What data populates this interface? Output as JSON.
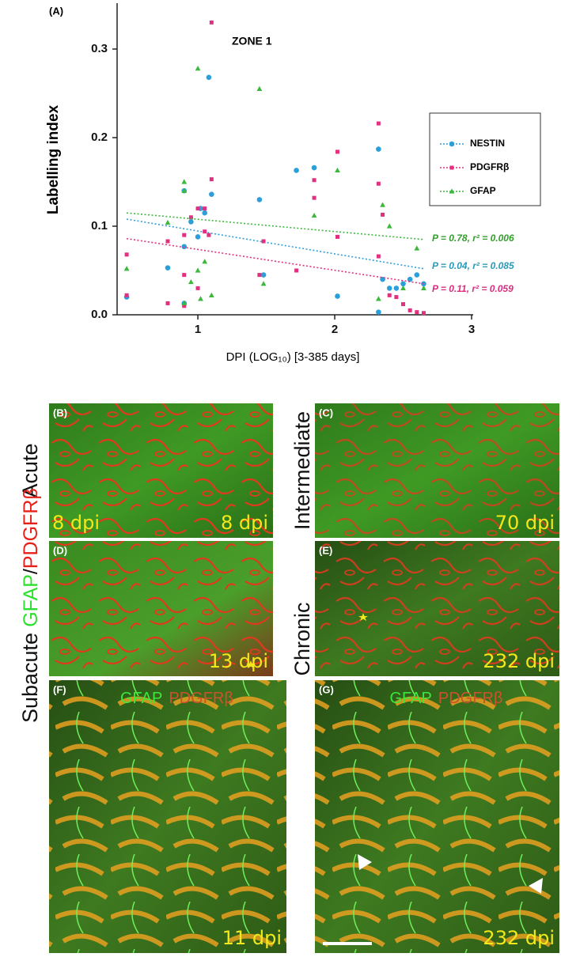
{
  "chart_data": {
    "type": "scatter",
    "panel_label": "(A)",
    "title": "ZONE 1",
    "xlabel": "DPI (LOG₁₀) [3-385 days]",
    "ylabel": "Labelling index",
    "xlim": [
      0.41,
      3
    ],
    "xticks": [
      1,
      2,
      3
    ],
    "ylim": [
      0,
      0.35
    ],
    "yticks": [
      {
        "value": 0,
        "label": "0.0"
      },
      0.1,
      0.2,
      0.3
    ],
    "legend": "right",
    "series": [
      {
        "name": "NESTIN",
        "color": "#2b9fd9",
        "marker": "circle",
        "x": [
          0.48,
          0.78,
          0.9,
          0.9,
          0.9,
          0.95,
          1.0,
          1.02,
          1.05,
          1.08,
          1.1,
          1.45,
          1.48,
          1.72,
          1.85,
          2.02,
          2.32,
          2.32,
          2.35,
          2.4,
          2.45,
          2.5,
          2.55,
          2.6,
          2.65
        ],
        "values": [
          0.02,
          0.053,
          0.14,
          0.077,
          0.013,
          0.105,
          0.088,
          0.12,
          0.115,
          0.268,
          0.136,
          0.13,
          0.045,
          0.163,
          0.166,
          0.021,
          0.187,
          0.003,
          0.04,
          0.03,
          0.03,
          0.035,
          0.04,
          0.045,
          0.035
        ],
        "trend": {
          "x": [
            0.48,
            2.65
          ],
          "values": [
            0.108,
            0.052
          ]
        },
        "annotation": "P = 0.04, r² = 0.085",
        "annotation_color": "#2a9ab8"
      },
      {
        "name": "PDGFRβ",
        "color": "#e0307f",
        "marker": "square",
        "x": [
          0.48,
          0.48,
          0.78,
          0.78,
          0.9,
          0.9,
          0.9,
          0.95,
          1.0,
          1.0,
          1.05,
          1.05,
          1.08,
          1.1,
          1.1,
          1.45,
          1.48,
          1.72,
          1.85,
          1.85,
          2.02,
          2.02,
          2.32,
          2.32,
          2.32,
          2.35,
          2.4,
          2.45,
          2.5,
          2.55,
          2.6,
          2.65
        ],
        "values": [
          0.068,
          0.022,
          0.013,
          0.083,
          0.09,
          0.045,
          0.01,
          0.11,
          0.12,
          0.03,
          0.12,
          0.094,
          0.09,
          0.33,
          0.153,
          0.045,
          0.083,
          0.05,
          0.152,
          0.132,
          0.184,
          0.088,
          0.216,
          0.148,
          0.066,
          0.113,
          0.022,
          0.02,
          0.012,
          0.005,
          0.003,
          0.002
        ],
        "trend": {
          "x": [
            0.48,
            2.65
          ],
          "values": [
            0.086,
            0.035
          ]
        },
        "annotation": "P = 0.11, r² = 0.059",
        "annotation_color": "#d6307f"
      },
      {
        "name": "GFAP",
        "color": "#3cb83c",
        "marker": "triangle",
        "x": [
          0.48,
          0.78,
          0.9,
          0.9,
          0.9,
          0.95,
          1.0,
          1.0,
          1.02,
          1.05,
          1.1,
          1.45,
          1.48,
          1.85,
          2.02,
          2.32,
          2.35,
          2.4,
          2.5,
          2.6,
          2.65
        ],
        "values": [
          0.052,
          0.104,
          0.15,
          0.14,
          0.013,
          0.037,
          0.278,
          0.05,
          0.018,
          0.06,
          0.022,
          0.255,
          0.035,
          0.112,
          0.163,
          0.018,
          0.124,
          0.1,
          0.03,
          0.075,
          0.03
        ],
        "trend": {
          "x": [
            0.48,
            2.65
          ],
          "values": [
            0.115,
            0.085
          ]
        },
        "annotation": "P = 0.78, r² = 0.006",
        "annotation_color": "#33a02c"
      }
    ]
  },
  "side_labels": {
    "acute": "Acute",
    "intermediate": "Intermediate",
    "subacute": "Subacute",
    "chronic": "Chronic",
    "stain_green": "GFAP",
    "stain_sep": "/",
    "stain_red": "PDGFRβ"
  },
  "panels": [
    {
      "label": "(B)",
      "dpi_left": "8 dpi",
      "dpi": "8 dpi"
    },
    {
      "label": "(C)",
      "dpi": "70 dpi"
    },
    {
      "label": "(D)",
      "dpi": "13 dpi"
    },
    {
      "label": "(E)",
      "dpi": "232 dpi"
    },
    {
      "label": "(F)",
      "stain_green": "GFAP",
      "stain_red": "PDGFRβ",
      "dpi": "11 dpi"
    },
    {
      "label": "(G)",
      "stain_green": "GFAP",
      "stain_red": "PDGFRβ",
      "dpi": "232 dpi"
    }
  ]
}
